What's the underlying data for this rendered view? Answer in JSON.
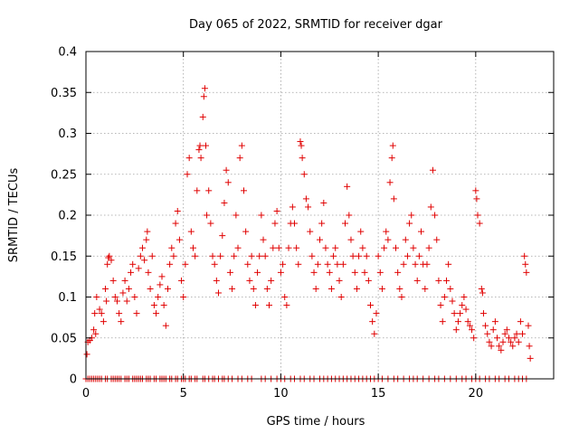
{
  "chart_data": {
    "type": "scatter",
    "title": "Day 065 of 2022, SRMTID for receiver dgar",
    "xlabel": "GPS time / hours",
    "ylabel": "SRMTID / TECUs",
    "xlim": [
      0,
      24
    ],
    "ylim": [
      0,
      0.4
    ],
    "x_ticks": [
      0,
      5,
      10,
      15,
      20
    ],
    "x_tick_labels": [
      "0",
      "5",
      "10",
      "15",
      "20"
    ],
    "y_ticks": [
      0,
      0.05,
      0.1,
      0.15,
      0.2,
      0.25,
      0.3,
      0.35,
      0.4
    ],
    "y_tick_labels": [
      "0",
      "0.05",
      "0.1",
      "0.15",
      "0.2",
      "0.25",
      "0.3",
      "0.35",
      "0.4"
    ],
    "grid": true,
    "marker": "plus",
    "color": "#e00000",
    "series": [
      {
        "name": "SRMTID",
        "points": [
          [
            0.05,
            0.03
          ],
          [
            0.1,
            0.045
          ],
          [
            0.2,
            0.047
          ],
          [
            0.3,
            0.05
          ],
          [
            0.4,
            0.06
          ],
          [
            0.45,
            0.08
          ],
          [
            0.5,
            0.055
          ],
          [
            0.55,
            0.1
          ],
          [
            0.7,
            0.085
          ],
          [
            0.8,
            0.08
          ],
          [
            0.9,
            0.07
          ],
          [
            1.0,
            0.11
          ],
          [
            1.05,
            0.095
          ],
          [
            1.1,
            0.14
          ],
          [
            1.15,
            0.148
          ],
          [
            1.2,
            0.15
          ],
          [
            1.3,
            0.145
          ],
          [
            1.4,
            0.12
          ],
          [
            1.5,
            0.1
          ],
          [
            1.6,
            0.095
          ],
          [
            1.7,
            0.08
          ],
          [
            1.8,
            0.07
          ],
          [
            1.9,
            0.105
          ],
          [
            2.0,
            0.12
          ],
          [
            2.1,
            0.095
          ],
          [
            2.2,
            0.11
          ],
          [
            2.3,
            0.13
          ],
          [
            2.4,
            0.14
          ],
          [
            2.5,
            0.1
          ],
          [
            2.6,
            0.08
          ],
          [
            2.7,
            0.135
          ],
          [
            2.8,
            0.15
          ],
          [
            2.9,
            0.16
          ],
          [
            3.0,
            0.145
          ],
          [
            3.1,
            0.17
          ],
          [
            3.15,
            0.18
          ],
          [
            3.2,
            0.13
          ],
          [
            3.3,
            0.11
          ],
          [
            3.4,
            0.15
          ],
          [
            3.5,
            0.09
          ],
          [
            3.6,
            0.08
          ],
          [
            3.7,
            0.1
          ],
          [
            3.8,
            0.115
          ],
          [
            3.9,
            0.125
          ],
          [
            4.0,
            0.09
          ],
          [
            4.1,
            0.065
          ],
          [
            4.2,
            0.11
          ],
          [
            4.3,
            0.14
          ],
          [
            4.4,
            0.16
          ],
          [
            4.5,
            0.15
          ],
          [
            4.6,
            0.19
          ],
          [
            4.7,
            0.205
          ],
          [
            4.8,
            0.17
          ],
          [
            4.9,
            0.12
          ],
          [
            5.0,
            0.1
          ],
          [
            5.1,
            0.14
          ],
          [
            5.2,
            0.25
          ],
          [
            5.3,
            0.27
          ],
          [
            5.4,
            0.18
          ],
          [
            5.5,
            0.16
          ],
          [
            5.6,
            0.15
          ],
          [
            5.7,
            0.23
          ],
          [
            5.8,
            0.28
          ],
          [
            5.85,
            0.285
          ],
          [
            5.9,
            0.27
          ],
          [
            6.0,
            0.32
          ],
          [
            6.05,
            0.345
          ],
          [
            6.1,
            0.355
          ],
          [
            6.15,
            0.285
          ],
          [
            6.2,
            0.2
          ],
          [
            6.3,
            0.23
          ],
          [
            6.4,
            0.19
          ],
          [
            6.5,
            0.15
          ],
          [
            6.6,
            0.14
          ],
          [
            6.7,
            0.12
          ],
          [
            6.8,
            0.105
          ],
          [
            6.9,
            0.15
          ],
          [
            7.0,
            0.175
          ],
          [
            7.1,
            0.215
          ],
          [
            7.2,
            0.255
          ],
          [
            7.3,
            0.24
          ],
          [
            7.4,
            0.13
          ],
          [
            7.5,
            0.11
          ],
          [
            7.6,
            0.15
          ],
          [
            7.7,
            0.2
          ],
          [
            7.8,
            0.16
          ],
          [
            7.9,
            0.27
          ],
          [
            8.0,
            0.285
          ],
          [
            8.1,
            0.23
          ],
          [
            8.2,
            0.18
          ],
          [
            8.3,
            0.14
          ],
          [
            8.4,
            0.12
          ],
          [
            8.5,
            0.15
          ],
          [
            8.6,
            0.11
          ],
          [
            8.7,
            0.09
          ],
          [
            8.8,
            0.13
          ],
          [
            8.9,
            0.15
          ],
          [
            9.0,
            0.2
          ],
          [
            9.1,
            0.17
          ],
          [
            9.2,
            0.15
          ],
          [
            9.3,
            0.11
          ],
          [
            9.4,
            0.09
          ],
          [
            9.5,
            0.12
          ],
          [
            9.6,
            0.16
          ],
          [
            9.7,
            0.19
          ],
          [
            9.8,
            0.205
          ],
          [
            9.9,
            0.16
          ],
          [
            10.0,
            0.13
          ],
          [
            10.1,
            0.14
          ],
          [
            10.2,
            0.1
          ],
          [
            10.3,
            0.09
          ],
          [
            10.4,
            0.16
          ],
          [
            10.5,
            0.19
          ],
          [
            10.6,
            0.21
          ],
          [
            10.7,
            0.19
          ],
          [
            10.8,
            0.16
          ],
          [
            10.9,
            0.14
          ],
          [
            11.0,
            0.29
          ],
          [
            11.05,
            0.285
          ],
          [
            11.1,
            0.27
          ],
          [
            11.2,
            0.25
          ],
          [
            11.3,
            0.22
          ],
          [
            11.4,
            0.21
          ],
          [
            11.5,
            0.18
          ],
          [
            11.6,
            0.15
          ],
          [
            11.7,
            0.13
          ],
          [
            11.8,
            0.11
          ],
          [
            11.9,
            0.14
          ],
          [
            12.0,
            0.17
          ],
          [
            12.1,
            0.19
          ],
          [
            12.2,
            0.215
          ],
          [
            12.3,
            0.16
          ],
          [
            12.4,
            0.14
          ],
          [
            12.5,
            0.13
          ],
          [
            12.6,
            0.11
          ],
          [
            12.7,
            0.15
          ],
          [
            12.8,
            0.16
          ],
          [
            12.9,
            0.14
          ],
          [
            13.0,
            0.12
          ],
          [
            13.1,
            0.1
          ],
          [
            13.2,
            0.14
          ],
          [
            13.3,
            0.19
          ],
          [
            13.4,
            0.235
          ],
          [
            13.5,
            0.2
          ],
          [
            13.6,
            0.17
          ],
          [
            13.7,
            0.15
          ],
          [
            13.8,
            0.13
          ],
          [
            13.9,
            0.11
          ],
          [
            14.0,
            0.15
          ],
          [
            14.1,
            0.18
          ],
          [
            14.2,
            0.16
          ],
          [
            14.3,
            0.13
          ],
          [
            14.4,
            0.15
          ],
          [
            14.5,
            0.12
          ],
          [
            14.6,
            0.09
          ],
          [
            14.7,
            0.07
          ],
          [
            14.8,
            0.055
          ],
          [
            14.9,
            0.08
          ],
          [
            15.0,
            0.15
          ],
          [
            15.1,
            0.13
          ],
          [
            15.2,
            0.11
          ],
          [
            15.3,
            0.16
          ],
          [
            15.4,
            0.18
          ],
          [
            15.5,
            0.17
          ],
          [
            15.6,
            0.24
          ],
          [
            15.7,
            0.27
          ],
          [
            15.75,
            0.285
          ],
          [
            15.8,
            0.22
          ],
          [
            15.9,
            0.16
          ],
          [
            16.0,
            0.13
          ],
          [
            16.1,
            0.11
          ],
          [
            16.2,
            0.1
          ],
          [
            16.3,
            0.14
          ],
          [
            16.4,
            0.17
          ],
          [
            16.5,
            0.15
          ],
          [
            16.6,
            0.19
          ],
          [
            16.7,
            0.2
          ],
          [
            16.8,
            0.16
          ],
          [
            16.9,
            0.14
          ],
          [
            17.0,
            0.12
          ],
          [
            17.1,
            0.15
          ],
          [
            17.2,
            0.18
          ],
          [
            17.3,
            0.14
          ],
          [
            17.4,
            0.11
          ],
          [
            17.5,
            0.14
          ],
          [
            17.6,
            0.16
          ],
          [
            17.7,
            0.21
          ],
          [
            17.8,
            0.255
          ],
          [
            17.9,
            0.2
          ],
          [
            18.0,
            0.17
          ],
          [
            18.1,
            0.12
          ],
          [
            18.2,
            0.09
          ],
          [
            18.3,
            0.07
          ],
          [
            18.4,
            0.1
          ],
          [
            18.5,
            0.12
          ],
          [
            18.6,
            0.14
          ],
          [
            18.7,
            0.11
          ],
          [
            18.8,
            0.095
          ],
          [
            18.9,
            0.08
          ],
          [
            19.0,
            0.06
          ],
          [
            19.1,
            0.07
          ],
          [
            19.2,
            0.08
          ],
          [
            19.3,
            0.09
          ],
          [
            19.4,
            0.1
          ],
          [
            19.5,
            0.085
          ],
          [
            19.6,
            0.07
          ],
          [
            19.7,
            0.065
          ],
          [
            19.8,
            0.06
          ],
          [
            19.9,
            0.05
          ],
          [
            20.0,
            0.23
          ],
          [
            20.05,
            0.22
          ],
          [
            20.1,
            0.2
          ],
          [
            20.2,
            0.19
          ],
          [
            20.3,
            0.11
          ],
          [
            20.35,
            0.105
          ],
          [
            20.4,
            0.08
          ],
          [
            20.5,
            0.065
          ],
          [
            20.6,
            0.055
          ],
          [
            20.7,
            0.045
          ],
          [
            20.8,
            0.04
          ],
          [
            20.9,
            0.06
          ],
          [
            21.0,
            0.07
          ],
          [
            21.1,
            0.05
          ],
          [
            21.2,
            0.04
          ],
          [
            21.3,
            0.035
          ],
          [
            21.4,
            0.045
          ],
          [
            21.5,
            0.055
          ],
          [
            21.6,
            0.06
          ],
          [
            21.7,
            0.05
          ],
          [
            21.8,
            0.045
          ],
          [
            21.9,
            0.04
          ],
          [
            22.0,
            0.05
          ],
          [
            22.1,
            0.055
          ],
          [
            22.2,
            0.045
          ],
          [
            22.3,
            0.07
          ],
          [
            22.4,
            0.055
          ],
          [
            22.5,
            0.15
          ],
          [
            22.55,
            0.14
          ],
          [
            22.6,
            0.13
          ],
          [
            22.7,
            0.065
          ],
          [
            22.75,
            0.04
          ],
          [
            22.8,
            0.025
          ]
        ]
      }
    ],
    "zero_points": [
      0.0,
      0.1,
      0.2,
      0.3,
      0.4,
      0.5,
      0.6,
      0.7,
      0.8,
      1.0,
      1.1,
      1.3,
      1.4,
      1.5,
      1.6,
      1.7,
      1.8,
      2.0,
      2.1,
      2.2,
      2.4,
      2.5,
      2.6,
      2.7,
      2.8,
      2.9,
      3.1,
      3.2,
      3.3,
      3.5,
      3.6,
      3.8,
      3.9,
      4.0,
      4.1,
      4.3,
      4.4,
      4.6,
      4.7,
      4.9,
      5.0,
      5.1,
      5.3,
      5.4,
      5.6,
      5.7,
      6.0,
      6.1,
      6.3,
      6.5,
      6.6,
      6.8,
      7.0,
      7.1,
      7.3,
      7.5,
      7.8,
      8.0,
      8.3,
      8.5,
      9.0,
      9.2,
      9.5,
      9.8,
      10.0,
      10.2,
      10.5,
      10.7,
      11.0,
      11.2,
      11.5,
      11.7,
      12.0,
      12.2,
      12.4,
      12.6,
      12.8,
      13.0,
      13.2,
      13.4,
      13.6,
      13.8,
      14.0,
      14.2,
      14.4,
      14.6,
      14.8,
      15.0,
      15.2,
      15.5,
      15.8,
      16.0,
      16.3,
      16.6,
      16.8,
      17.0,
      17.3,
      17.6,
      17.9,
      18.1,
      18.4,
      18.7,
      19.0,
      19.3,
      19.5,
      19.8,
      20.0,
      20.2,
      20.5,
      20.7,
      21.0,
      21.2,
      21.5,
      21.7,
      22.0,
      22.2,
      22.4,
      22.6
    ]
  }
}
